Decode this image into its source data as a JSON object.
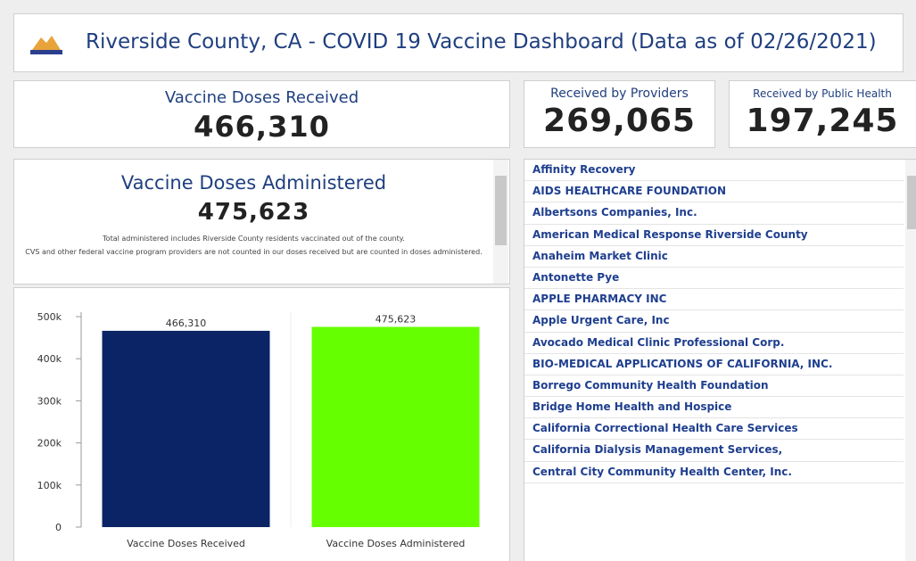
{
  "header": {
    "title": "Riverside County, CA - COVID 19 Vaccine Dashboard (Data as of 02/26/2021)"
  },
  "received": {
    "label": "Vaccine Doses Received",
    "value": "466,310"
  },
  "providers": {
    "label": "Received by Providers",
    "value": "269,065"
  },
  "public_health": {
    "label": "Received by Public Health",
    "value": "197,245"
  },
  "administered": {
    "label": "Vaccine Doses Administered",
    "value": "475,623",
    "notes": [
      "Total administered includes Riverside County residents vaccinated out of the county.",
      "CVS and other federal vaccine program providers are not counted in our doses received but are counted in doses administered."
    ]
  },
  "chart_data": {
    "type": "bar",
    "categories": [
      "Vaccine Doses Received",
      "Vaccine Doses Administered"
    ],
    "values": [
      466310,
      475623
    ],
    "value_labels": [
      "466,310",
      "475,623"
    ],
    "colors": [
      "#0b2466",
      "#66ff00"
    ],
    "ylim": [
      0,
      500000
    ],
    "yticks": [
      0,
      {
        "value": 100000,
        "label": "100k"
      },
      {
        "value": 200000,
        "label": "200k"
      },
      {
        "value": 300000,
        "label": "300k"
      },
      {
        "value": 400000,
        "label": "400k"
      },
      {
        "value": 500000,
        "label": "500k"
      }
    ]
  },
  "providers_list": [
    "Affinity Recovery",
    "AIDS HEALTHCARE FOUNDATION",
    "Albertsons Companies, Inc.",
    "American Medical Response Riverside County",
    "Anaheim Market Clinic",
    "Antonette Pye",
    "APPLE PHARMACY INC",
    "Apple Urgent Care, Inc",
    "Avocado Medical Clinic Professional Corp.",
    "BIO-MEDICAL APPLICATIONS OF CALIFORNIA, INC.",
    "Borrego Community Health Foundation",
    "Bridge Home Health and Hospice",
    "California Correctional Health Care Services",
    "California Dialysis Management Services,",
    "Central City Community Health Center, Inc."
  ]
}
